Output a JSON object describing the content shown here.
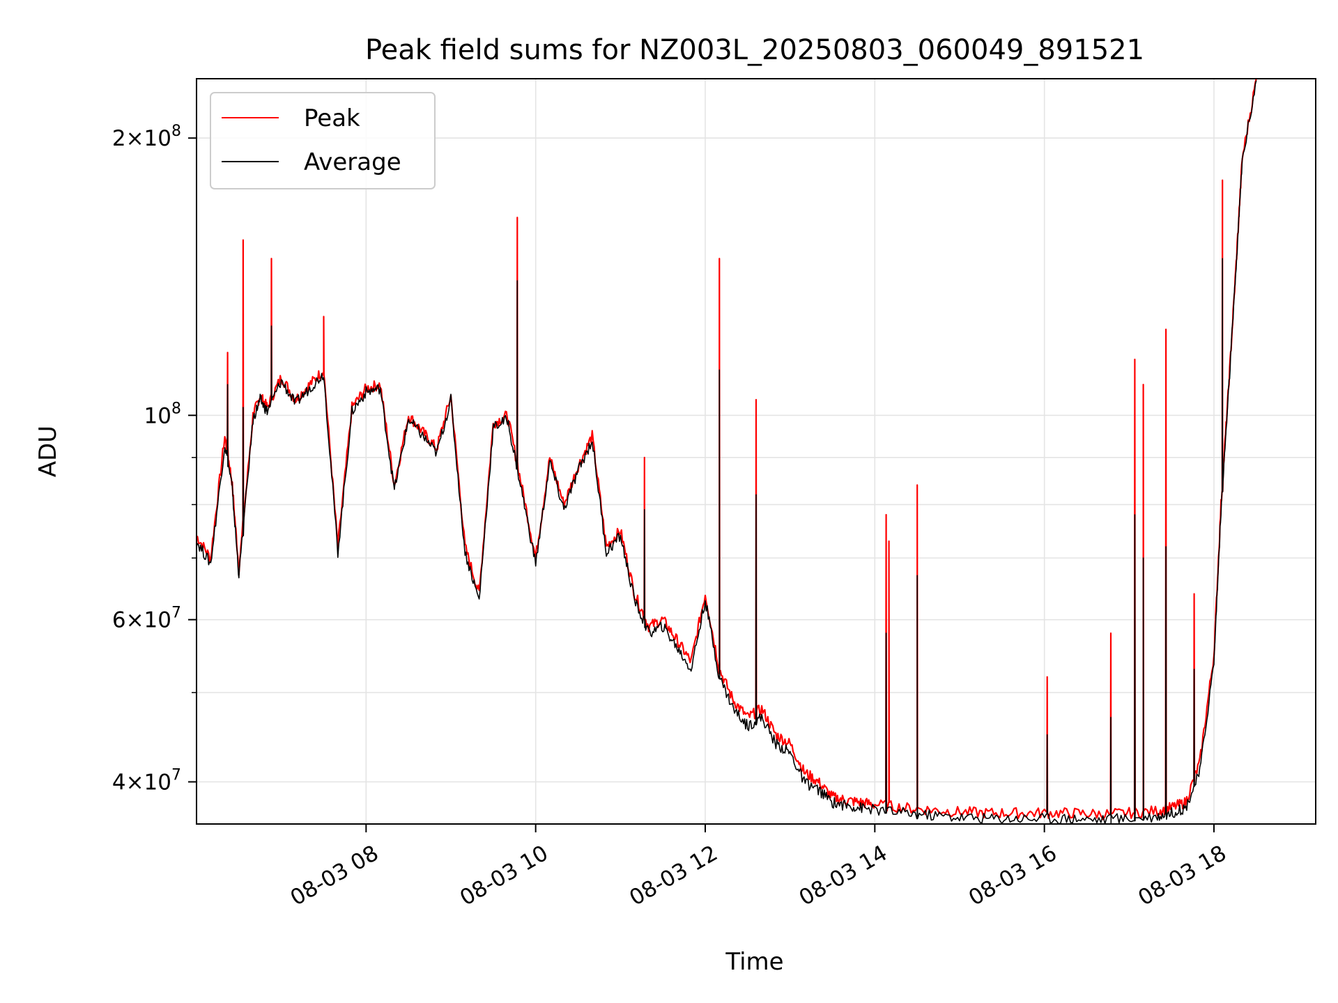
{
  "chart_data": {
    "type": "line",
    "title": "Peak field sums for NZ003L_20250803_060049_891521",
    "xlabel": "Time",
    "ylabel": "ADU",
    "yscale": "log",
    "grid": true,
    "legend_position": "top-left",
    "xlim": [
      "2025-08-03 06:00",
      "2025-08-03 19:12"
    ],
    "ylim": [
      36000000,
      232000000
    ],
    "x_ticks": [
      "2025-08-03 08:00",
      "2025-08-03 10:00",
      "2025-08-03 12:00",
      "2025-08-03 14:00",
      "2025-08-03 16:00",
      "2025-08-03 18:00"
    ],
    "x_tick_labels": [
      "08-03 08",
      "08-03 10",
      "08-03 12",
      "08-03 14",
      "08-03 16",
      "08-03 18"
    ],
    "y_ticks": [
      {
        "value": 40000000,
        "coef": "4",
        "exp": "7"
      },
      {
        "value": 60000000,
        "coef": "6",
        "exp": "7"
      },
      {
        "value": 100000000,
        "coef": "",
        "exp": "8"
      },
      {
        "value": 200000000,
        "coef": "2",
        "exp": "8"
      }
    ],
    "series": [
      {
        "name": "Peak",
        "color": "#ff0000",
        "x": [
          "06:00",
          "06:10",
          "06:20",
          "06:25",
          "06:30",
          "06:40",
          "06:45",
          "06:50",
          "07:00",
          "07:10",
          "07:20",
          "07:30",
          "07:40",
          "07:50",
          "08:00",
          "08:10",
          "08:20",
          "08:30",
          "08:40",
          "08:50",
          "09:00",
          "09:10",
          "09:20",
          "09:30",
          "09:40",
          "09:50",
          "10:00",
          "10:10",
          "10:20",
          "10:30",
          "10:40",
          "10:50",
          "11:00",
          "11:10",
          "11:20",
          "11:30",
          "11:40",
          "11:50",
          "12:00",
          "12:10",
          "12:20",
          "12:30",
          "12:40",
          "12:50",
          "13:00",
          "13:10",
          "13:20",
          "13:30",
          "13:40",
          "13:50",
          "14:00",
          "14:20",
          "14:40",
          "15:00",
          "15:20",
          "15:40",
          "16:00",
          "16:20",
          "16:40",
          "17:00",
          "17:20",
          "17:30",
          "17:40",
          "17:50",
          "18:00",
          "18:05",
          "18:10",
          "18:15",
          "18:20",
          "18:30"
        ],
        "y": [
          74000000,
          70000000,
          95000000,
          85000000,
          68000000,
          100000000,
          105000000,
          102000000,
          110000000,
          104000000,
          108000000,
          112000000,
          72000000,
          102000000,
          107000000,
          108000000,
          84000000,
          100000000,
          96000000,
          92000000,
          105000000,
          72000000,
          64000000,
          98000000,
          100000000,
          84000000,
          70000000,
          90000000,
          80000000,
          88000000,
          95000000,
          72000000,
          75000000,
          64000000,
          59000000,
          60000000,
          57000000,
          54000000,
          64000000,
          53000000,
          49000000,
          47000000,
          48000000,
          45000000,
          44000000,
          41000000,
          40000000,
          38500000,
          38200000,
          38000000,
          37800000,
          37500000,
          37300000,
          37100000,
          37000000,
          37000000,
          37000000,
          37000000,
          36900000,
          37000000,
          37200000,
          37500000,
          38000000,
          42000000,
          55000000,
          80000000,
          105000000,
          140000000,
          190000000,
          232000000
        ],
        "spikes": [
          {
            "x": "06:22",
            "y": 117000000
          },
          {
            "x": "06:33",
            "y": 155000000
          },
          {
            "x": "06:53",
            "y": 148000000
          },
          {
            "x": "07:30",
            "y": 128000000
          },
          {
            "x": "09:47",
            "y": 164000000
          },
          {
            "x": "11:17",
            "y": 90000000
          },
          {
            "x": "12:10",
            "y": 148000000
          },
          {
            "x": "12:36",
            "y": 104000000
          },
          {
            "x": "14:08",
            "y": 78000000
          },
          {
            "x": "14:10",
            "y": 73000000
          },
          {
            "x": "14:30",
            "y": 84000000
          },
          {
            "x": "16:02",
            "y": 52000000
          },
          {
            "x": "16:47",
            "y": 58000000
          },
          {
            "x": "17:04",
            "y": 115000000
          },
          {
            "x": "17:10",
            "y": 108000000
          },
          {
            "x": "17:26",
            "y": 124000000
          },
          {
            "x": "17:46",
            "y": 64000000
          },
          {
            "x": "18:06",
            "y": 180000000
          }
        ]
      },
      {
        "name": "Average",
        "color": "#000000",
        "x": [
          "06:00",
          "06:10",
          "06:20",
          "06:25",
          "06:30",
          "06:40",
          "06:45",
          "06:50",
          "07:00",
          "07:10",
          "07:20",
          "07:30",
          "07:40",
          "07:50",
          "08:00",
          "08:10",
          "08:20",
          "08:30",
          "08:40",
          "08:50",
          "09:00",
          "09:10",
          "09:20",
          "09:30",
          "09:40",
          "09:50",
          "10:00",
          "10:10",
          "10:20",
          "10:30",
          "10:40",
          "10:50",
          "11:00",
          "11:10",
          "11:20",
          "11:30",
          "11:40",
          "11:50",
          "12:00",
          "12:10",
          "12:20",
          "12:30",
          "12:40",
          "12:50",
          "13:00",
          "13:10",
          "13:20",
          "13:30",
          "13:40",
          "13:50",
          "14:00",
          "14:20",
          "14:40",
          "15:00",
          "15:20",
          "15:40",
          "16:00",
          "16:20",
          "16:40",
          "17:00",
          "17:20",
          "17:30",
          "17:40",
          "17:50",
          "18:00",
          "18:05",
          "18:10",
          "18:15",
          "18:20",
          "18:30"
        ],
        "y": [
          73000000,
          69000000,
          93000000,
          84000000,
          67000000,
          99000000,
          104000000,
          101000000,
          109000000,
          103000000,
          107000000,
          111000000,
          71000000,
          101000000,
          106000000,
          107000000,
          83000000,
          99000000,
          95000000,
          91000000,
          104000000,
          71000000,
          63000000,
          97000000,
          99000000,
          83000000,
          69000000,
          89000000,
          79000000,
          87000000,
          94000000,
          71000000,
          74000000,
          63000000,
          58000000,
          59000000,
          56000000,
          53000000,
          63000000,
          52000000,
          48000000,
          46000000,
          47000000,
          44000000,
          43000000,
          40000000,
          39200000,
          38000000,
          37700000,
          37500000,
          37300000,
          37000000,
          36800000,
          36600000,
          36500000,
          36500000,
          36500000,
          36500000,
          36400000,
          36500000,
          36700000,
          37000000,
          37500000,
          41000000,
          54000000,
          79000000,
          104000000,
          139000000,
          189000000,
          231000000
        ],
        "spikes": [
          {
            "x": "06:22",
            "y": 108000000
          },
          {
            "x": "06:33",
            "y": 102000000
          },
          {
            "x": "06:53",
            "y": 125000000
          },
          {
            "x": "09:47",
            "y": 140000000
          },
          {
            "x": "11:17",
            "y": 79000000
          },
          {
            "x": "12:10",
            "y": 112000000
          },
          {
            "x": "12:36",
            "y": 82000000
          },
          {
            "x": "14:08",
            "y": 58000000
          },
          {
            "x": "14:30",
            "y": 67000000
          },
          {
            "x": "16:02",
            "y": 45000000
          },
          {
            "x": "16:47",
            "y": 47000000
          },
          {
            "x": "17:04",
            "y": 78000000
          },
          {
            "x": "17:10",
            "y": 70000000
          },
          {
            "x": "17:26",
            "y": 72000000
          },
          {
            "x": "17:46",
            "y": 53000000
          },
          {
            "x": "18:06",
            "y": 148000000
          }
        ]
      }
    ]
  }
}
